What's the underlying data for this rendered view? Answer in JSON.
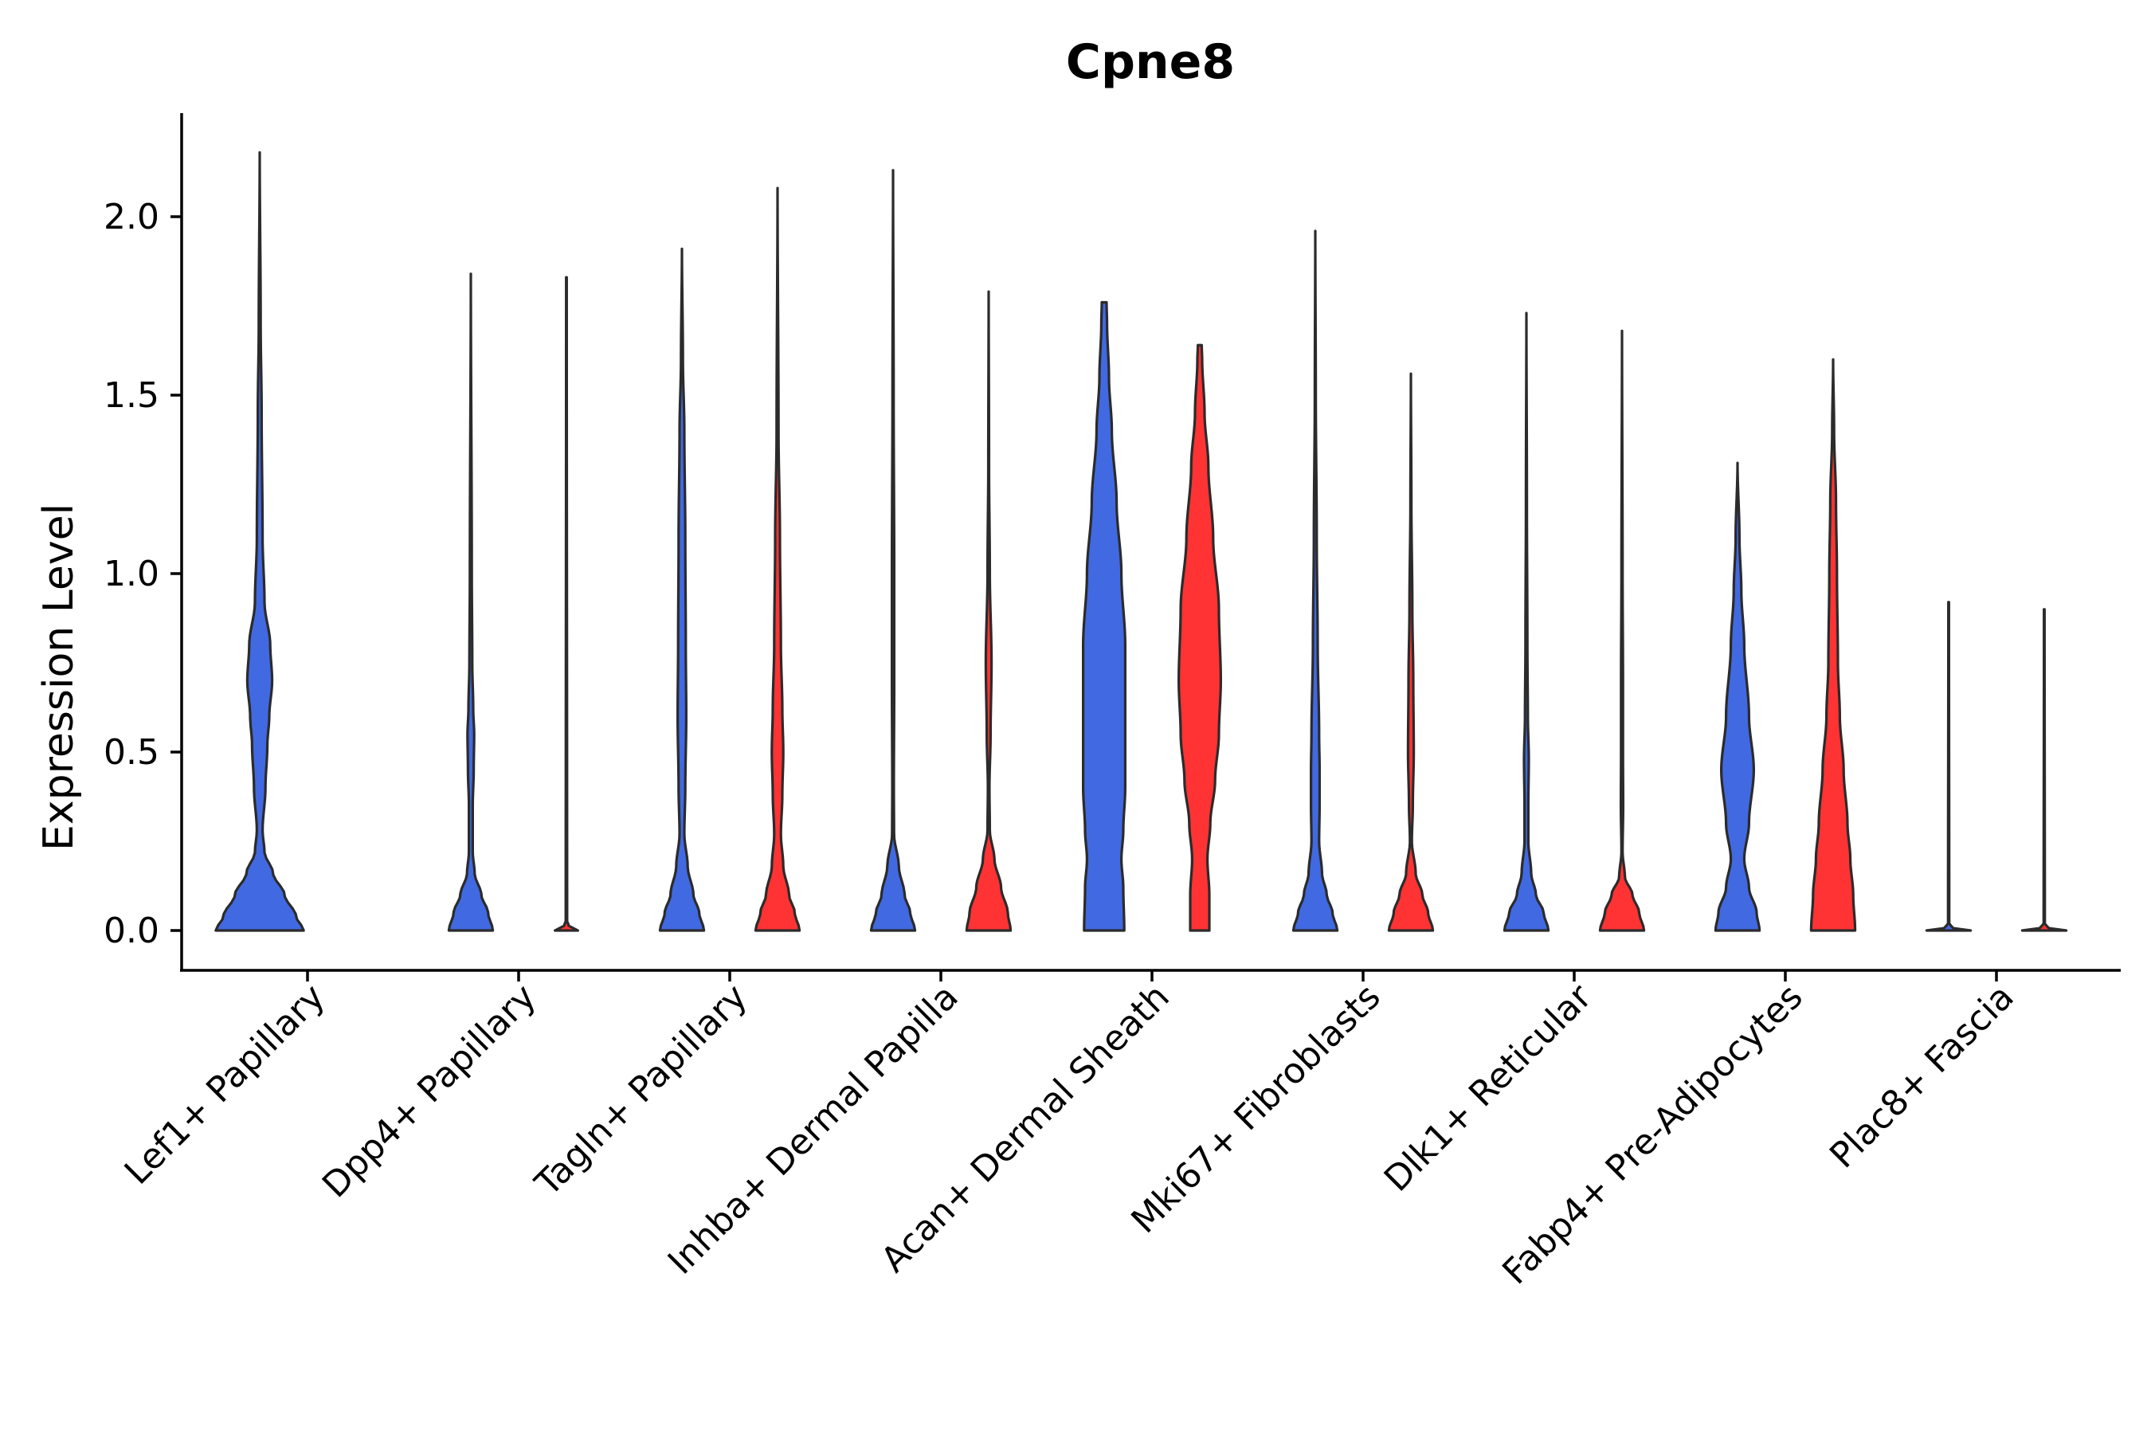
{
  "chart_data": {
    "type": "violin",
    "title": "Cpne8",
    "xlabel": "",
    "ylabel": "Expression Level",
    "ylim": [
      -0.11,
      2.28
    ],
    "yticks": [
      0.0,
      0.5,
      1.0,
      1.5,
      2.0
    ],
    "ytick_labels": [
      "0.0",
      "0.5",
      "1.0",
      "1.5",
      "2.0"
    ],
    "colors": {
      "blue": "#4169E1",
      "red": "#FF3333"
    },
    "categories": [
      "Lef1+ Papillary",
      "Dpp4+ Papillary",
      "Tagln+ Papillary",
      "Inhba+ Dermal Papilla",
      "Acan+ Dermal Sheath",
      "Mki67+ Fibroblasts",
      "Dlk1+ Reticular",
      "Fabp4+ Pre-Adipocytes",
      "Plac8+ Fascia"
    ],
    "violins": [
      {
        "name": "Lef1+ Papillary blue",
        "category": 0,
        "side": "blue",
        "max": 2.18,
        "profile": [
          [
            0,
            0.46
          ],
          [
            0.04,
            0.38
          ],
          [
            0.1,
            0.26
          ],
          [
            0.16,
            0.14
          ],
          [
            0.22,
            0.05
          ],
          [
            0.28,
            0.03
          ],
          [
            0.4,
            0.06
          ],
          [
            0.52,
            0.08
          ],
          [
            0.6,
            0.1
          ],
          [
            0.7,
            0.13
          ],
          [
            0.8,
            0.11
          ],
          [
            0.92,
            0.05
          ],
          [
            1.1,
            0.03
          ],
          [
            1.45,
            0.02
          ],
          [
            1.7,
            0.01
          ],
          [
            2.18,
            0
          ]
        ]
      },
      {
        "name": "Dpp4+ Papillary blue",
        "category": 1,
        "side": "blue",
        "max": 1.84,
        "profile": [
          [
            0,
            0.23
          ],
          [
            0.05,
            0.18
          ],
          [
            0.1,
            0.11
          ],
          [
            0.16,
            0.04
          ],
          [
            0.22,
            0.02
          ],
          [
            0.35,
            0.02
          ],
          [
            0.45,
            0.03
          ],
          [
            0.55,
            0.035
          ],
          [
            0.62,
            0.025
          ],
          [
            0.75,
            0.015
          ],
          [
            1.0,
            0.01
          ],
          [
            1.84,
            0
          ]
        ]
      },
      {
        "name": "Dpp4+ Papillary red",
        "category": 1,
        "side": "red",
        "max": 1.83,
        "profile": [
          [
            0,
            0.12
          ],
          [
            0.005,
            0.05
          ],
          [
            0.02,
            0.007
          ],
          [
            1.83,
            0.003
          ]
        ]
      },
      {
        "name": "Tagln+ Papillary blue",
        "category": 2,
        "side": "blue",
        "max": 1.91,
        "profile": [
          [
            0,
            0.23
          ],
          [
            0.05,
            0.18
          ],
          [
            0.1,
            0.12
          ],
          [
            0.18,
            0.06
          ],
          [
            0.27,
            0.025
          ],
          [
            0.4,
            0.035
          ],
          [
            0.6,
            0.045
          ],
          [
            0.8,
            0.04
          ],
          [
            1.1,
            0.035
          ],
          [
            1.4,
            0.025
          ],
          [
            1.6,
            0.01
          ],
          [
            1.91,
            0
          ]
        ]
      },
      {
        "name": "Tagln+ Papillary red",
        "category": 2,
        "side": "red",
        "max": 2.08,
        "profile": [
          [
            0,
            0.23
          ],
          [
            0.05,
            0.18
          ],
          [
            0.1,
            0.12
          ],
          [
            0.18,
            0.06
          ],
          [
            0.27,
            0.035
          ],
          [
            0.38,
            0.05
          ],
          [
            0.5,
            0.06
          ],
          [
            0.62,
            0.05
          ],
          [
            0.8,
            0.035
          ],
          [
            1.1,
            0.025
          ],
          [
            1.4,
            0.01
          ],
          [
            2.08,
            0
          ]
        ]
      },
      {
        "name": "Inhba+ Dermal Papilla blue",
        "category": 3,
        "side": "blue",
        "max": 2.13,
        "profile": [
          [
            0,
            0.23
          ],
          [
            0.05,
            0.18
          ],
          [
            0.1,
            0.12
          ],
          [
            0.18,
            0.06
          ],
          [
            0.27,
            0.01
          ],
          [
            0.4,
            0.008
          ],
          [
            0.7,
            0.012
          ],
          [
            1.0,
            0.012
          ],
          [
            1.5,
            0.006
          ],
          [
            2.13,
            0
          ]
        ]
      },
      {
        "name": "Inhba+ Dermal Papilla red",
        "category": 3,
        "side": "red",
        "max": 1.79,
        "profile": [
          [
            0,
            0.23
          ],
          [
            0.05,
            0.2
          ],
          [
            0.12,
            0.13
          ],
          [
            0.2,
            0.06
          ],
          [
            0.28,
            0.012
          ],
          [
            0.4,
            0.008
          ],
          [
            0.55,
            0.02
          ],
          [
            0.75,
            0.03
          ],
          [
            1.0,
            0.012
          ],
          [
            1.3,
            0.004
          ],
          [
            1.79,
            0
          ]
        ]
      },
      {
        "name": "Acan+ Dermal Sheath blue",
        "category": 4,
        "side": "blue",
        "max": 1.76,
        "profile": [
          [
            0,
            0.21
          ],
          [
            0.12,
            0.2
          ],
          [
            0.2,
            0.18
          ],
          [
            0.28,
            0.2
          ],
          [
            0.4,
            0.22
          ],
          [
            0.6,
            0.22
          ],
          [
            0.8,
            0.22
          ],
          [
            1.0,
            0.18
          ],
          [
            1.2,
            0.13
          ],
          [
            1.4,
            0.08
          ],
          [
            1.55,
            0.05
          ],
          [
            1.7,
            0.03
          ],
          [
            1.76,
            0.025
          ]
        ]
      },
      {
        "name": "Acan+ Dermal Sheath red",
        "category": 4,
        "side": "red",
        "max": 1.64,
        "profile": [
          [
            0,
            0.1
          ],
          [
            0.1,
            0.1
          ],
          [
            0.2,
            0.08
          ],
          [
            0.3,
            0.11
          ],
          [
            0.42,
            0.16
          ],
          [
            0.55,
            0.2
          ],
          [
            0.7,
            0.22
          ],
          [
            0.9,
            0.2
          ],
          [
            1.1,
            0.14
          ],
          [
            1.3,
            0.09
          ],
          [
            1.45,
            0.05
          ],
          [
            1.6,
            0.025
          ],
          [
            1.64,
            0.02
          ]
        ]
      },
      {
        "name": "Mki67+ Fibroblasts blue",
        "category": 5,
        "side": "blue",
        "max": 1.96,
        "profile": [
          [
            0,
            0.23
          ],
          [
            0.05,
            0.18
          ],
          [
            0.1,
            0.12
          ],
          [
            0.16,
            0.07
          ],
          [
            0.25,
            0.04
          ],
          [
            0.35,
            0.045
          ],
          [
            0.45,
            0.045
          ],
          [
            0.55,
            0.04
          ],
          [
            0.8,
            0.025
          ],
          [
            1.1,
            0.015
          ],
          [
            1.5,
            0.005
          ],
          [
            1.96,
            0
          ]
        ]
      },
      {
        "name": "Mki67+ Fibroblasts red",
        "category": 5,
        "side": "red",
        "max": 1.56,
        "profile": [
          [
            0,
            0.23
          ],
          [
            0.05,
            0.18
          ],
          [
            0.1,
            0.12
          ],
          [
            0.16,
            0.05
          ],
          [
            0.25,
            0.01
          ],
          [
            0.35,
            0.02
          ],
          [
            0.5,
            0.03
          ],
          [
            0.7,
            0.025
          ],
          [
            0.9,
            0.015
          ],
          [
            1.2,
            0.005
          ],
          [
            1.56,
            0
          ]
        ]
      },
      {
        "name": "Dlk1+ Reticular blue",
        "category": 6,
        "side": "blue",
        "max": 1.73,
        "profile": [
          [
            0,
            0.23
          ],
          [
            0.05,
            0.18
          ],
          [
            0.1,
            0.1
          ],
          [
            0.16,
            0.05
          ],
          [
            0.25,
            0.02
          ],
          [
            0.35,
            0.02
          ],
          [
            0.48,
            0.025
          ],
          [
            0.6,
            0.015
          ],
          [
            0.8,
            0.01
          ],
          [
            1.2,
            0.005
          ],
          [
            1.73,
            0
          ]
        ]
      },
      {
        "name": "Dlk1+ Reticular red",
        "category": 6,
        "side": "red",
        "max": 1.68,
        "profile": [
          [
            0,
            0.23
          ],
          [
            0.05,
            0.18
          ],
          [
            0.1,
            0.11
          ],
          [
            0.15,
            0.03
          ],
          [
            0.22,
            0.006
          ],
          [
            0.35,
            0.012
          ],
          [
            0.5,
            0.01
          ],
          [
            0.7,
            0.01
          ],
          [
            1.0,
            0.006
          ],
          [
            1.68,
            0
          ]
        ]
      },
      {
        "name": "Fabp4+ Pre-Adipocytes blue",
        "category": 7,
        "side": "blue",
        "max": 1.31,
        "profile": [
          [
            0,
            0.23
          ],
          [
            0.05,
            0.2
          ],
          [
            0.12,
            0.12
          ],
          [
            0.2,
            0.07
          ],
          [
            0.3,
            0.12
          ],
          [
            0.45,
            0.17
          ],
          [
            0.6,
            0.12
          ],
          [
            0.8,
            0.07
          ],
          [
            0.95,
            0.04
          ],
          [
            1.1,
            0.02
          ],
          [
            1.31,
            0
          ]
        ]
      },
      {
        "name": "Fabp4+ Pre-Adipocytes red",
        "category": 7,
        "side": "red",
        "max": 1.6,
        "profile": [
          [
            0,
            0.23
          ],
          [
            0.1,
            0.21
          ],
          [
            0.2,
            0.18
          ],
          [
            0.3,
            0.15
          ],
          [
            0.45,
            0.11
          ],
          [
            0.6,
            0.07
          ],
          [
            0.75,
            0.05
          ],
          [
            1.0,
            0.04
          ],
          [
            1.2,
            0.03
          ],
          [
            1.4,
            0.01
          ],
          [
            1.6,
            0
          ]
        ]
      },
      {
        "name": "Plac8+ Fascia blue",
        "category": 8,
        "side": "blue",
        "max": 0.92,
        "profile": [
          [
            0,
            0.23
          ],
          [
            0.005,
            0.05
          ],
          [
            0.02,
            0.006
          ],
          [
            0.92,
            0.003
          ]
        ]
      },
      {
        "name": "Plac8+ Fascia red",
        "category": 8,
        "side": "red",
        "max": 0.9,
        "profile": [
          [
            0,
            0.23
          ],
          [
            0.005,
            0.05
          ],
          [
            0.02,
            0.006
          ],
          [
            0.9,
            0.003
          ]
        ]
      }
    ]
  }
}
